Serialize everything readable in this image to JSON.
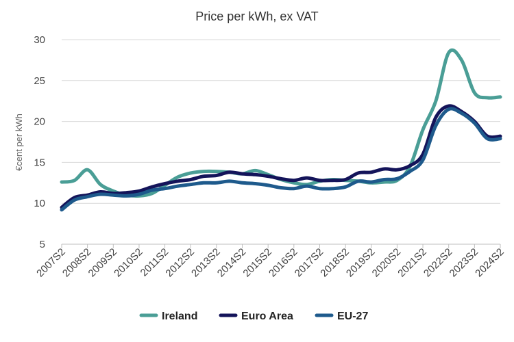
{
  "chart_data": {
    "type": "line",
    "title": "Price per kWh, ex VAT",
    "ylabel": "€cent per kWh",
    "xlabel": "",
    "ylim": [
      5,
      30
    ],
    "yticks": [
      5,
      10,
      15,
      20,
      25,
      30
    ],
    "grid": true,
    "legend_position": "bottom",
    "x": [
      "2007S2",
      "2008S1",
      "2008S2",
      "2009S1",
      "2009S2",
      "2010S1",
      "2010S2",
      "2011S1",
      "2011S2",
      "2012S1",
      "2012S2",
      "2013S1",
      "2013S2",
      "2014S1",
      "2014S2",
      "2015S1",
      "2015S2",
      "2016S1",
      "2016S2",
      "2017S1",
      "2017S2",
      "2018S1",
      "2018S2",
      "2019S1",
      "2019S2",
      "2020S1",
      "2020S2",
      "2021S1",
      "2021S2",
      "2022S1",
      "2022S2",
      "2023S1",
      "2023S2",
      "2024S1",
      "2024S2"
    ],
    "x_tick_labels": [
      "2007S2",
      "2008S2",
      "2009S2",
      "2010S2",
      "2011S2",
      "2012S2",
      "2013S2",
      "2014S2",
      "2015S2",
      "2016S2",
      "2017S2",
      "2018S2",
      "2019S2",
      "2020S2",
      "2021S2",
      "2022S2",
      "2023S2",
      "2024S2"
    ],
    "series": [
      {
        "name": "Ireland",
        "color": "#4a9e96",
        "values": [
          12.6,
          12.8,
          14.1,
          12.3,
          11.5,
          11.0,
          10.9,
          11.2,
          12.2,
          13.2,
          13.7,
          13.9,
          13.9,
          13.8,
          13.6,
          14.0,
          13.5,
          12.9,
          12.5,
          12.3,
          12.7,
          12.9,
          12.8,
          12.7,
          12.5,
          12.6,
          12.8,
          14.5,
          19.0,
          22.5,
          28.4,
          27.5,
          23.5,
          22.9,
          23.0
        ]
      },
      {
        "name": "Euro Area",
        "color": "#14145a",
        "values": [
          9.5,
          10.7,
          11.0,
          11.4,
          11.2,
          11.3,
          11.5,
          12.0,
          12.4,
          12.7,
          12.9,
          13.3,
          13.4,
          13.8,
          13.6,
          13.5,
          13.3,
          13.0,
          12.8,
          13.1,
          12.8,
          12.8,
          12.9,
          13.7,
          13.8,
          14.2,
          14.1,
          14.6,
          16.0,
          20.5,
          21.9,
          21.2,
          20.0,
          18.2,
          18.2
        ]
      },
      {
        "name": "EU-27",
        "color": "#1e5a8c",
        "values": [
          9.2,
          10.4,
          10.8,
          11.1,
          11.0,
          10.9,
          11.1,
          11.6,
          11.8,
          12.1,
          12.3,
          12.5,
          12.5,
          12.7,
          12.5,
          12.4,
          12.2,
          11.9,
          11.8,
          12.1,
          11.8,
          11.8,
          12.0,
          12.7,
          12.6,
          12.9,
          13.0,
          13.9,
          15.3,
          19.5,
          21.5,
          21.0,
          19.8,
          17.9,
          17.9
        ]
      }
    ]
  }
}
